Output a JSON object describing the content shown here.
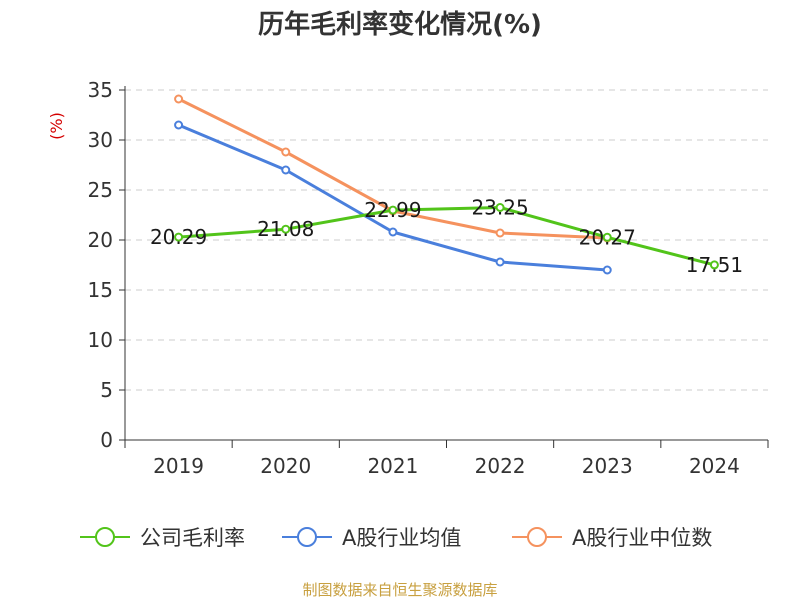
{
  "chart_data": {
    "type": "line",
    "title": "历年毛利率变化情况(%)",
    "ylabel": "(%)",
    "xlabel": "",
    "categories": [
      "2019",
      "2020",
      "2021",
      "2022",
      "2023",
      "2024"
    ],
    "ylim": [
      0,
      35
    ],
    "yticks": [
      "0",
      "5",
      "10",
      "15",
      "20",
      "25",
      "30",
      "35"
    ],
    "grid": true,
    "legend_position": "bottom",
    "series": [
      {
        "name": "公司毛利率",
        "color": "#52c41a",
        "values": [
          20.29,
          21.08,
          22.99,
          23.25,
          20.27,
          17.51
        ],
        "labels": [
          "20.29",
          "21.08",
          "22.99",
          "23.25",
          "20.27",
          "17.51"
        ]
      },
      {
        "name": "A股行业均值",
        "color": "#4a7fdc",
        "values": [
          31.5,
          27.0,
          20.8,
          17.8,
          17.0,
          null
        ],
        "labels": []
      },
      {
        "name": "A股行业中位数",
        "color": "#f5925e",
        "values": [
          34.1,
          28.8,
          22.9,
          20.7,
          20.2,
          null
        ],
        "labels": []
      }
    ]
  },
  "footer": {
    "source": "制图数据来自恒生聚源数据库"
  }
}
